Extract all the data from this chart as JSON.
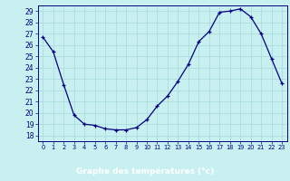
{
  "hours": [
    0,
    1,
    2,
    3,
    4,
    5,
    6,
    7,
    8,
    9,
    10,
    11,
    12,
    13,
    14,
    15,
    16,
    17,
    18,
    19,
    20,
    21,
    22,
    23
  ],
  "temperatures": [
    26.7,
    25.4,
    22.5,
    19.8,
    19.0,
    18.9,
    18.6,
    18.5,
    18.5,
    18.7,
    19.4,
    20.6,
    21.5,
    22.8,
    24.3,
    26.3,
    27.2,
    28.9,
    29.0,
    29.2,
    28.5,
    27.0,
    24.8,
    22.6
  ],
  "yticks": [
    18,
    19,
    20,
    21,
    22,
    23,
    24,
    25,
    26,
    27,
    28,
    29
  ],
  "xtick_labels": [
    "0",
    "1",
    "2",
    "3",
    "4",
    "5",
    "6",
    "7",
    "8",
    "9",
    "10",
    "11",
    "12",
    "13",
    "14",
    "15",
    "16",
    "17",
    "18",
    "19",
    "20",
    "21",
    "22",
    "23"
  ],
  "xlabel": "Graphe des températures (°c)",
  "line_color": "#000080",
  "marker": "+",
  "plot_bg_color": "#c8f0f0",
  "fig_bg_color": "#c8f0f0",
  "grid_color": "#aadddd",
  "axis_label_color": "#000080",
  "bottom_bar_color": "#2020a0",
  "bottom_text_color": "#ffffff",
  "tick_label_color": "#000080"
}
